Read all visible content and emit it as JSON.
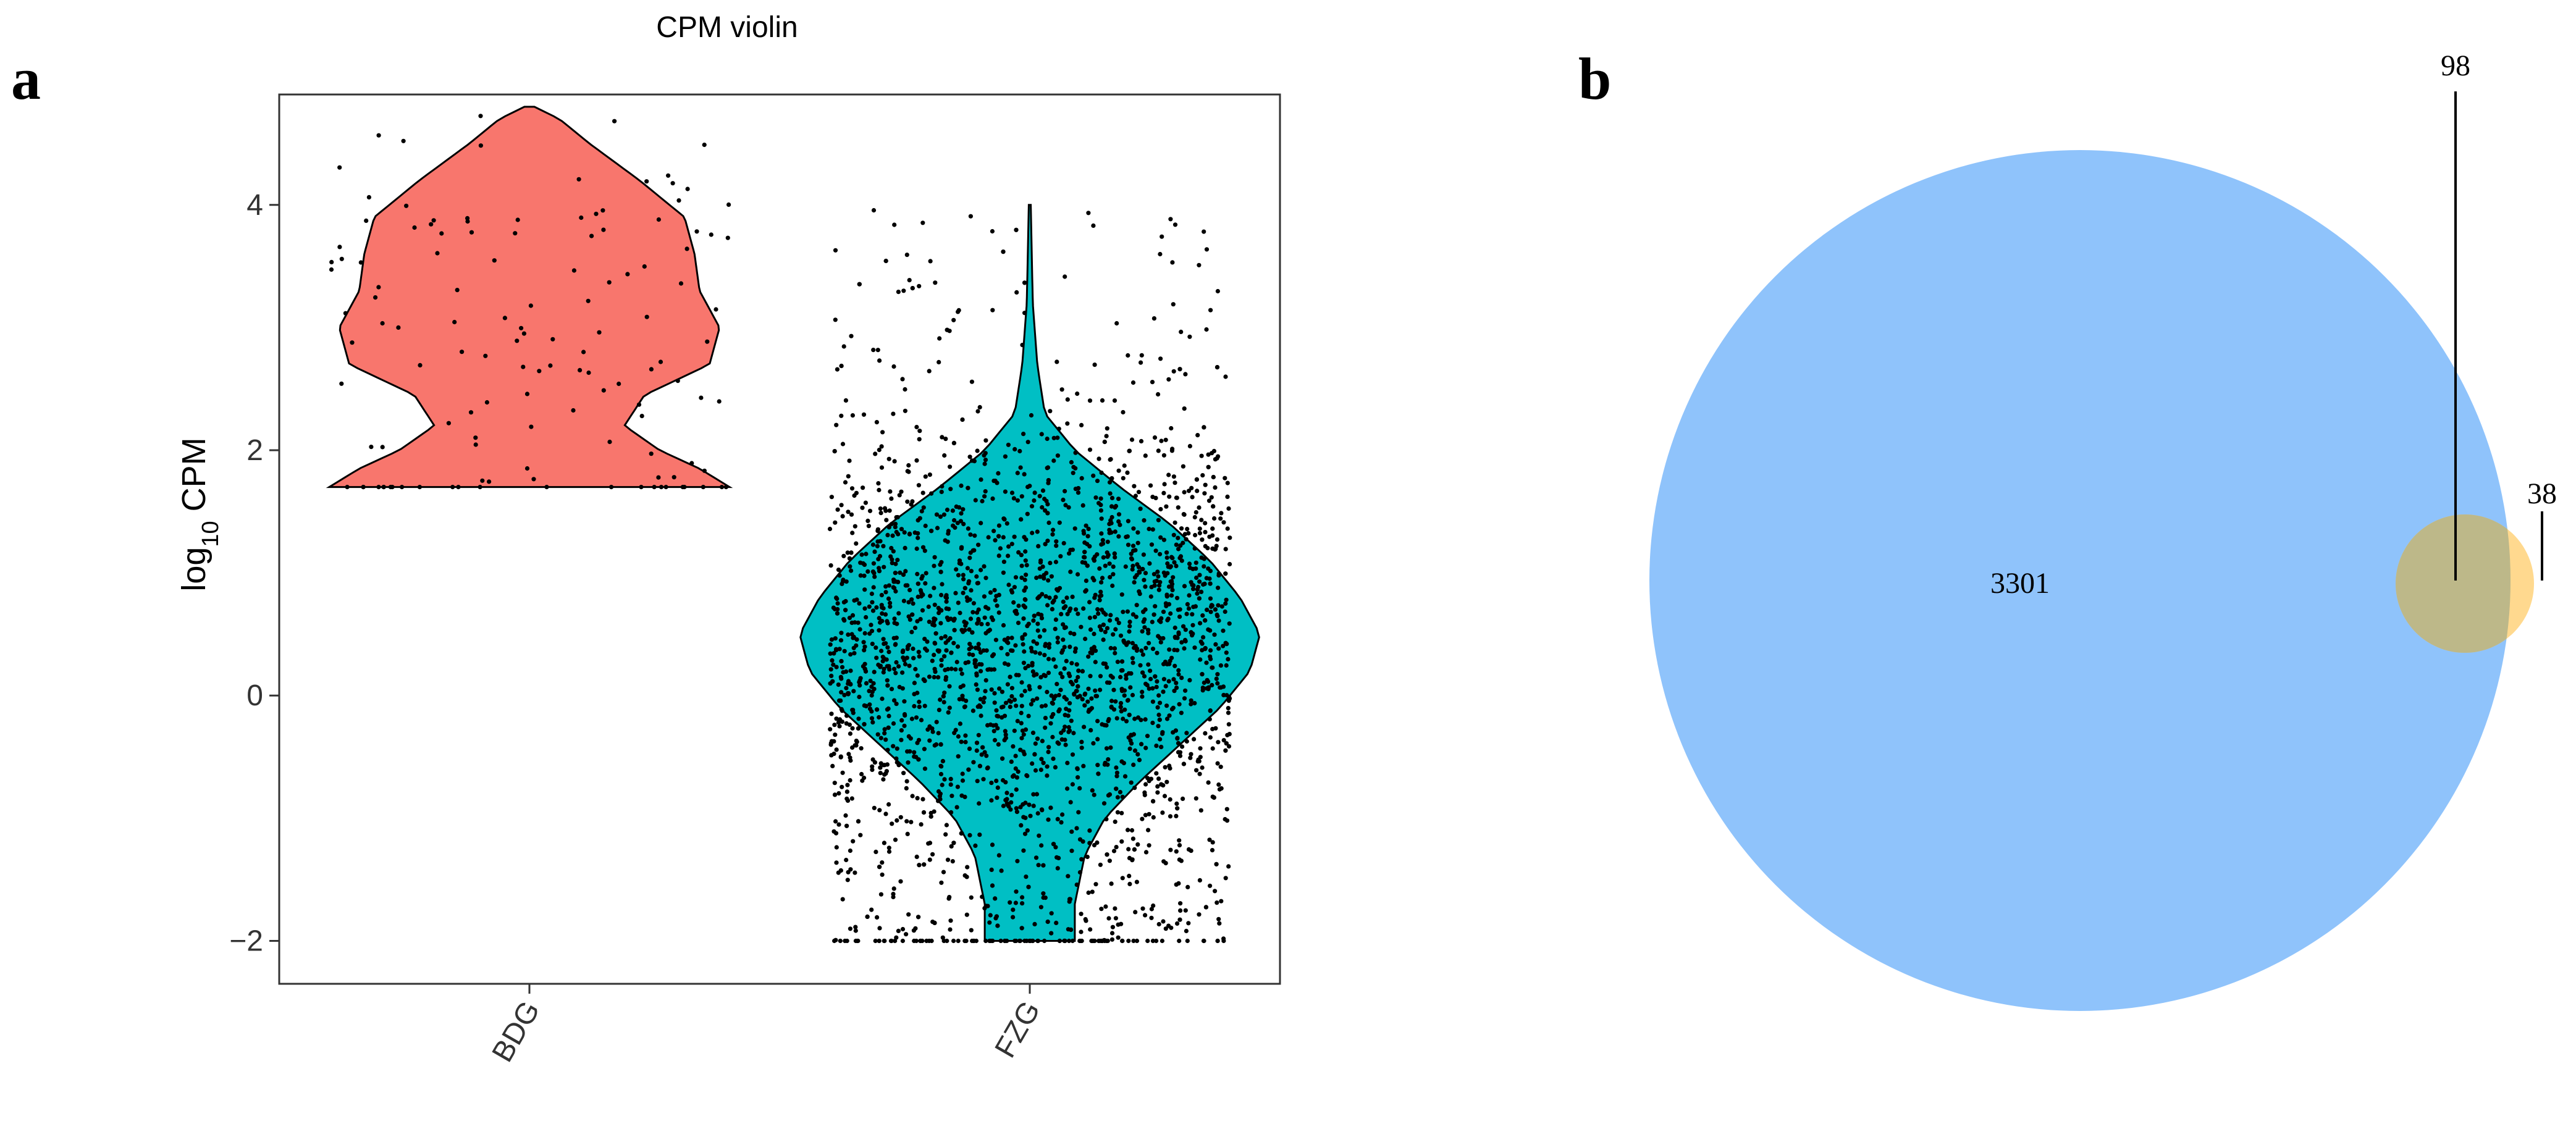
{
  "panels": {
    "a": "a",
    "b": "b"
  },
  "chart_data": [
    {
      "type": "violin",
      "title": "CPM violin",
      "xlabel": "",
      "ylabel": "log10 CPM",
      "ylabel_parts": {
        "base": "log",
        "subscript": "10",
        "rest": " CPM"
      },
      "ylim": [
        -2.35,
        4.9
      ],
      "yticks": [
        -2,
        0,
        2,
        4
      ],
      "grid": false,
      "legend": "none",
      "categories": [
        "BDG",
        "FZG"
      ],
      "colors": {
        "BDG": "#F8766D",
        "FZG": "#00BFC4"
      },
      "series": [
        {
          "category": "BDG",
          "min": 1.7,
          "max": 4.8,
          "density_profile": [
            {
              "y": 1.7,
              "half_width": 0.4
            },
            {
              "y": 1.85,
              "half_width": 0.34
            },
            {
              "y": 2.0,
              "half_width": 0.26
            },
            {
              "y": 2.2,
              "half_width": 0.19
            },
            {
              "y": 2.45,
              "half_width": 0.23
            },
            {
              "y": 2.7,
              "half_width": 0.36
            },
            {
              "y": 3.0,
              "half_width": 0.38
            },
            {
              "y": 3.3,
              "half_width": 0.34
            },
            {
              "y": 3.6,
              "half_width": 0.33
            },
            {
              "y": 3.9,
              "half_width": 0.31
            },
            {
              "y": 4.2,
              "half_width": 0.22
            },
            {
              "y": 4.5,
              "half_width": 0.12
            },
            {
              "y": 4.7,
              "half_width": 0.06
            },
            {
              "y": 4.8,
              "half_width": 0.01
            }
          ],
          "approx_point_count": 130
        },
        {
          "category": "FZG",
          "min": -2.0,
          "max": 4.0,
          "density_profile": [
            {
              "y": -2.0,
              "half_width": 0.09
            },
            {
              "y": -1.7,
              "half_width": 0.09
            },
            {
              "y": -1.3,
              "half_width": 0.11
            },
            {
              "y": -1.0,
              "half_width": 0.15
            },
            {
              "y": -0.7,
              "half_width": 0.22
            },
            {
              "y": -0.4,
              "half_width": 0.3
            },
            {
              "y": -0.1,
              "half_width": 0.38
            },
            {
              "y": 0.2,
              "half_width": 0.44
            },
            {
              "y": 0.5,
              "half_width": 0.46
            },
            {
              "y": 0.8,
              "half_width": 0.42
            },
            {
              "y": 1.1,
              "half_width": 0.36
            },
            {
              "y": 1.4,
              "half_width": 0.28
            },
            {
              "y": 1.7,
              "half_width": 0.18
            },
            {
              "y": 2.0,
              "half_width": 0.09
            },
            {
              "y": 2.3,
              "half_width": 0.03
            },
            {
              "y": 2.7,
              "half_width": 0.015
            },
            {
              "y": 3.2,
              "half_width": 0.006
            },
            {
              "y": 4.0,
              "half_width": 0.002
            }
          ],
          "approx_point_count": 2600
        }
      ]
    },
    {
      "type": "venn",
      "sets": [
        {
          "color": "#8FC3FB",
          "region_label": "3301",
          "value": 3301
        },
        {
          "color": "#FFD47F",
          "region_label": "38",
          "value": 38
        }
      ],
      "overlap": {
        "region_label": "98",
        "value": 98
      }
    }
  ]
}
